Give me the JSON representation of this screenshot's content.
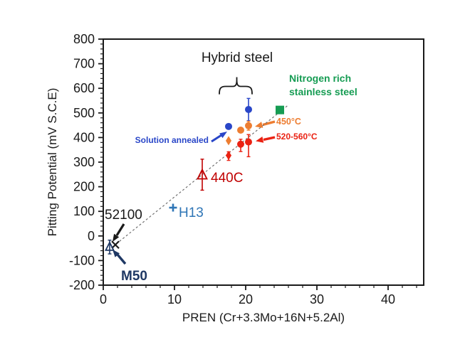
{
  "chart_data": {
    "type": "scatter",
    "title": "",
    "xlabel": "PREN (Cr+3.3Mo+16N+5.2Al)",
    "ylabel": "Pitting Potential (mV S.C.E)",
    "xlim": [
      0,
      45
    ],
    "ylim": [
      -200,
      800
    ],
    "grid": false,
    "legend_position": "none",
    "x_ticks": [
      {
        "v": 0,
        "label": "0"
      },
      {
        "v": 10,
        "label": "10"
      },
      {
        "v": 20,
        "label": "20"
      },
      {
        "v": 30,
        "label": "30"
      },
      {
        "v": 40,
        "label": "40"
      }
    ],
    "y_ticks": [
      {
        "v": 800,
        "label": "800"
      },
      {
        "v": 700,
        "label": "700"
      },
      {
        "v": 600,
        "label": "600"
      },
      {
        "v": 500,
        "label": "500"
      },
      {
        "v": 400,
        "label": "400"
      },
      {
        "v": 300,
        "label": "300"
      },
      {
        "v": 200,
        "label": "200"
      },
      {
        "v": 100,
        "label": "100"
      },
      {
        "v": 0,
        "label": "0"
      },
      {
        "v": -100,
        "label": "-100"
      },
      {
        "v": -200,
        "label": "-200"
      }
    ],
    "x_minor_step": 2,
    "y_minor_step": 20,
    "trend_line": {
      "x1": 1.8,
      "y1": -33,
      "x2": 25.9,
      "y2": 530,
      "style": "dashed"
    },
    "series": [
      {
        "name": "52100",
        "marker": "x",
        "color": "#1a1a1a",
        "size": 10,
        "points": [
          {
            "x": 1.7,
            "y": -36
          }
        ]
      },
      {
        "name": "M50",
        "marker": "triangle-open",
        "color": "#1F3864",
        "size": 11,
        "points": [
          {
            "x": 0.9,
            "y": -45,
            "eu": 28,
            "ed": 28
          }
        ]
      },
      {
        "name": "H13",
        "marker": "plus",
        "color": "#2E75B6",
        "size": 11,
        "points": [
          {
            "x": 9.8,
            "y": 115
          }
        ]
      },
      {
        "name": "440C",
        "marker": "triangle-open",
        "color": "#C00000",
        "size": 13,
        "points": [
          {
            "x": 13.9,
            "y": 248,
            "eu": 64,
            "ed": 62
          }
        ]
      },
      {
        "name": "Hybrid steel (solution annealed)",
        "marker": "circle",
        "color": "#2946C8",
        "size": 10,
        "points": [
          {
            "x": 17.6,
            "y": 445
          },
          {
            "x": 20.4,
            "y": 514,
            "eu": 45,
            "ed": 46
          }
        ]
      },
      {
        "name": "Hybrid steel aged 450°C",
        "marker": "circle",
        "color": "#ED7D31",
        "size": 10,
        "points": [
          {
            "x": 17.6,
            "y": 387,
            "marker": "diamond"
          },
          {
            "x": 19.3,
            "y": 430
          },
          {
            "x": 20.4,
            "y": 448,
            "eu": 18,
            "ed": 18
          }
        ]
      },
      {
        "name": "Hybrid steel aged 520-560°C",
        "marker": "circle",
        "color": "#EA2213",
        "size": 10,
        "points": [
          {
            "x": 17.6,
            "y": 327,
            "eu": 15,
            "ed": 20,
            "marker": "diamond"
          },
          {
            "x": 19.3,
            "y": 373,
            "eu": 20,
            "ed": 30
          },
          {
            "x": 20.4,
            "y": 382,
            "eu": 30,
            "ed": 60
          }
        ]
      },
      {
        "name": "Nitrogen rich stainless steel",
        "marker": "square",
        "color": "#169C53",
        "size": 12,
        "points": [
          {
            "x": 24.8,
            "y": 512
          }
        ]
      }
    ]
  },
  "annotations": {
    "hybrid_steel": "Hybrid steel",
    "nitrogen_line1": "Nitrogen rich",
    "nitrogen_line2": "stainless steel",
    "solution_annealed": "Solution annealed",
    "temp_450": "450°C",
    "temp_520_560": "520-560°C",
    "label_52100": "52100",
    "label_m50": "M50",
    "label_h13": "H13",
    "label_440c": "440C"
  },
  "colors": {
    "blue": "#2946C8",
    "orange": "#ED7D31",
    "red": "#EA2213",
    "dark_red": "#C00000",
    "navy": "#1F3864",
    "steel_blue": "#2E75B6",
    "green": "#169C53",
    "black": "#1a1a1a",
    "trend": "#666666"
  }
}
